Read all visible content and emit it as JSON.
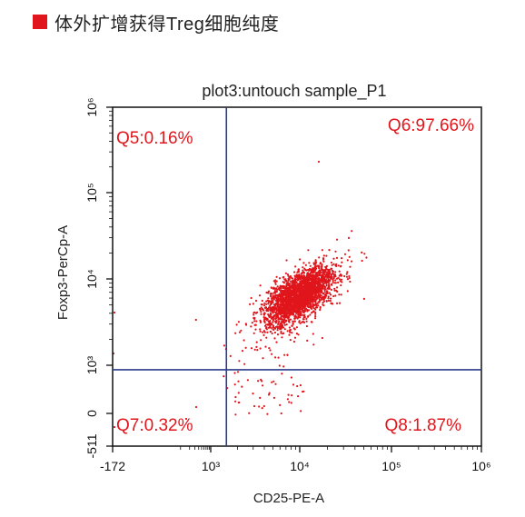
{
  "header": {
    "title": "体外扩增获得Treg细胞纯度",
    "accent_color": "#e0161c"
  },
  "chart_data": {
    "type": "scatter",
    "title": "plot3:untouch sample_P1",
    "xlabel": "CD25-PE-A",
    "ylabel": "Foxp3-PerCp-A",
    "x_scale": "biexponential",
    "y_scale": "biexponential",
    "xlim": [
      -172,
      1000000
    ],
    "ylim": [
      -511,
      1000000
    ],
    "x_ticks": [
      {
        "label": "-172",
        "value": -172
      },
      {
        "label": "10³",
        "value": 1000
      },
      {
        "label": "10⁴",
        "value": 10000
      },
      {
        "label": "10⁵",
        "value": 100000
      },
      {
        "label": "10⁶",
        "value": 1000000
      }
    ],
    "y_ticks": [
      {
        "label": "-511",
        "value": -511
      },
      {
        "label": "0",
        "value": 0
      },
      {
        "label": "10³",
        "value": 1000
      },
      {
        "label": "10⁴",
        "value": 10000
      },
      {
        "label": "10⁵",
        "value": 100000
      },
      {
        "label": "10⁶",
        "value": 1000000
      }
    ],
    "gate": {
      "x": 1500,
      "y": 650
    },
    "quadrants": {
      "Q5": "Q5:0.16%",
      "Q6": "Q6:97.66%",
      "Q7": "Q7:0.32%",
      "Q8": "Q8:1.87%"
    },
    "point_color": "#e0161c",
    "gate_color": "#2b3c8c",
    "population": {
      "main_center": {
        "x": 10000,
        "y": 6500
      },
      "approx_event_count": 2600
    }
  }
}
